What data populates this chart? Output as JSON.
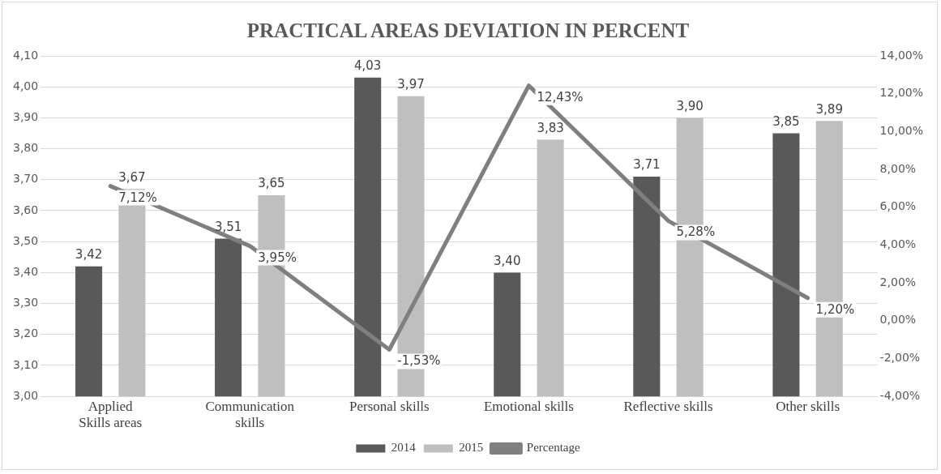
{
  "chart_data": {
    "type": "bar",
    "title": "PRACTICAL AREAS DEVIATION IN PERCENT",
    "categories": [
      "Applied Skills areas",
      "Communication skills",
      "Personal skills",
      "Emotional skills",
      "Reflective skills",
      "Other skills"
    ],
    "series": [
      {
        "name": "2014",
        "color": "#595959",
        "values": [
          3.42,
          3.51,
          4.03,
          3.4,
          3.71,
          3.85
        ],
        "value_labels": [
          "3,42",
          "3,51",
          "4,03",
          "3,40",
          "3,71",
          "3,85"
        ]
      },
      {
        "name": "2015",
        "color": "#bfbfbf",
        "values": [
          3.67,
          3.65,
          3.97,
          3.83,
          3.9,
          3.89
        ],
        "value_labels": [
          "3,67",
          "3,65",
          "3,97",
          "3,83",
          "3,90",
          "3,89"
        ]
      },
      {
        "name": "Percentage",
        "type": "line",
        "axis": "y2",
        "color": "#7f7f7f",
        "values": [
          7.12,
          3.95,
          -1.53,
          12.43,
          5.28,
          1.2
        ],
        "value_labels": [
          "7,12%",
          "3,95%",
          "-1,53%",
          "12,43%",
          "5,28%",
          "1,20%"
        ]
      }
    ],
    "ylim": [
      3.0,
      4.1
    ],
    "yticks": [
      {
        "value": 3.0,
        "label": "3,00"
      },
      {
        "value": 3.1,
        "label": "3,10"
      },
      {
        "value": 3.2,
        "label": "3,20"
      },
      {
        "value": 3.3,
        "label": "3,30"
      },
      {
        "value": 3.4,
        "label": "3,40"
      },
      {
        "value": 3.5,
        "label": "3,50"
      },
      {
        "value": 3.6,
        "label": "3,60"
      },
      {
        "value": 3.7,
        "label": "3,70"
      },
      {
        "value": 3.8,
        "label": "3,80"
      },
      {
        "value": 3.9,
        "label": "3,90"
      },
      {
        "value": 4.0,
        "label": "4,00"
      },
      {
        "value": 4.1,
        "label": "4,10"
      }
    ],
    "y2lim": [
      -4,
      14
    ],
    "y2ticks": [
      {
        "value": -4,
        "label": "-4,00%"
      },
      {
        "value": -2,
        "label": "-2,00%"
      },
      {
        "value": 0,
        "label": "0,00%"
      },
      {
        "value": 2,
        "label": "2,00%"
      },
      {
        "value": 4,
        "label": "4,00%"
      },
      {
        "value": 6,
        "label": "6,00%"
      },
      {
        "value": 8,
        "label": "8,00%"
      },
      {
        "value": 10,
        "label": "10,00%"
      },
      {
        "value": 12,
        "label": "12,00%"
      },
      {
        "value": 14,
        "label": "14,00%"
      }
    ],
    "grid": "y",
    "legend": "bottom",
    "marker": "none",
    "line_style": "solid"
  }
}
